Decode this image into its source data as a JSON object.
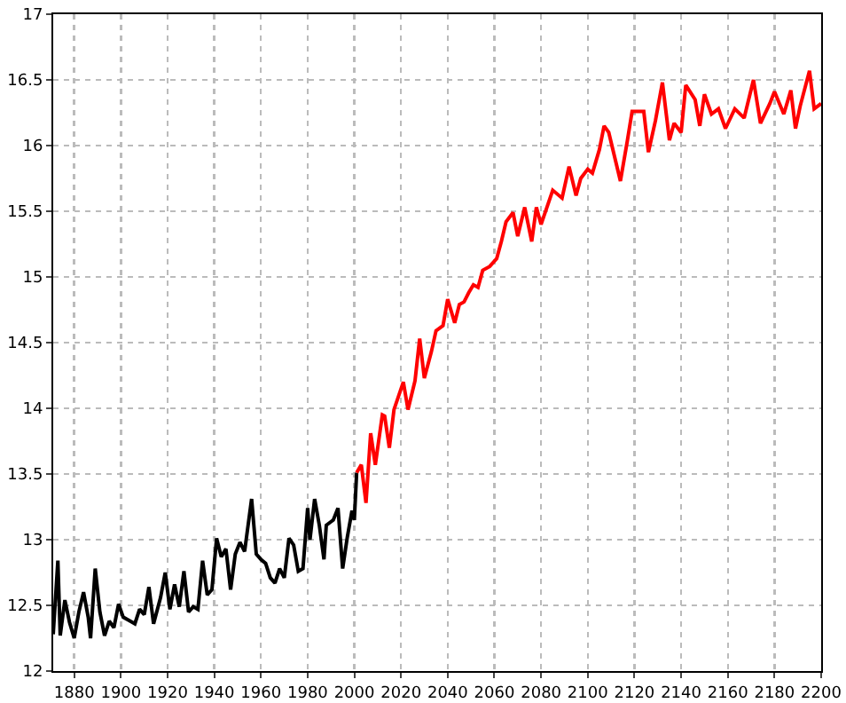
{
  "chart_data": {
    "type": "line",
    "xlim": [
      1871,
      2200
    ],
    "ylim": [
      12,
      17
    ],
    "xticks": [
      1880,
      1900,
      1920,
      1940,
      1960,
      1980,
      2000,
      2020,
      2040,
      2060,
      2080,
      2100,
      2120,
      2140,
      2160,
      2180,
      2200
    ],
    "yticks": [
      12,
      12.5,
      13,
      13.5,
      14,
      14.5,
      15,
      15.5,
      16,
      16.5,
      17
    ],
    "grid": true,
    "marker": "none",
    "line_style": "solid",
    "series": [
      {
        "color": "#000000",
        "x": [
          1871,
          1873,
          1874,
          1876,
          1878,
          1880,
          1882,
          1884,
          1886,
          1887,
          1889,
          1891,
          1893,
          1895,
          1897,
          1899,
          1901,
          1904,
          1906,
          1908,
          1910,
          1912,
          1914,
          1917,
          1919,
          1921,
          1923,
          1925,
          1927,
          1929,
          1931,
          1933,
          1935,
          1937,
          1939,
          1941,
          1943,
          1945,
          1947,
          1949,
          1951,
          1953,
          1956,
          1958,
          1960,
          1962,
          1964,
          1966,
          1968,
          1970,
          1972,
          1974,
          1976,
          1978,
          1980,
          1981,
          1983,
          1985,
          1987,
          1988,
          1991,
          1993,
          1995,
          1997,
          1999,
          2000,
          2001
        ],
        "values": [
          12.28,
          12.84,
          12.27,
          12.54,
          12.37,
          12.25,
          12.45,
          12.6,
          12.41,
          12.25,
          12.78,
          12.45,
          12.27,
          12.38,
          12.33,
          12.51,
          12.41,
          12.38,
          12.36,
          12.47,
          12.43,
          12.64,
          12.36,
          12.56,
          12.75,
          12.47,
          12.66,
          12.49,
          12.76,
          12.45,
          12.49,
          12.47,
          12.84,
          12.58,
          12.62,
          13.01,
          12.87,
          12.93,
          12.62,
          12.89,
          12.98,
          12.91,
          13.31,
          12.89,
          12.85,
          12.82,
          12.71,
          12.67,
          12.78,
          12.71,
          13.01,
          12.96,
          12.76,
          12.78,
          13.24,
          13.0,
          13.31,
          13.11,
          12.85,
          13.11,
          13.15,
          13.24,
          12.78,
          13.02,
          13.22,
          13.15,
          13.51
        ]
      },
      {
        "color": "#ff0000",
        "x": [
          2001,
          2003,
          2005,
          2007,
          2009,
          2012,
          2013,
          2015,
          2017,
          2021,
          2023,
          2026,
          2028,
          2030,
          2033,
          2035,
          2038,
          2040,
          2043,
          2045,
          2047,
          2049,
          2051,
          2053,
          2055,
          2058,
          2061,
          2063,
          2065,
          2068,
          2070,
          2073,
          2076,
          2078,
          2080,
          2085,
          2089,
          2092,
          2095,
          2097,
          2100,
          2102,
          2105,
          2107,
          2109,
          2114,
          2117,
          2119,
          2124,
          2126,
          2129,
          2132,
          2135,
          2137,
          2140,
          2142,
          2146,
          2148,
          2150,
          2153,
          2156,
          2159,
          2163,
          2167,
          2171,
          2174,
          2178,
          2180,
          2184,
          2187,
          2189,
          2191,
          2195,
          2197,
          2200
        ],
        "values": [
          13.51,
          13.57,
          13.28,
          13.81,
          13.57,
          13.95,
          13.94,
          13.7,
          13.99,
          14.2,
          13.99,
          14.21,
          14.53,
          14.23,
          14.43,
          14.59,
          14.63,
          14.83,
          14.65,
          14.79,
          14.81,
          14.88,
          14.94,
          14.92,
          15.05,
          15.08,
          15.14,
          15.27,
          15.42,
          15.49,
          15.31,
          15.53,
          15.27,
          15.53,
          15.4,
          15.66,
          15.6,
          15.84,
          15.62,
          15.75,
          15.82,
          15.79,
          15.97,
          16.15,
          16.1,
          15.73,
          16.04,
          16.26,
          16.26,
          15.95,
          16.19,
          16.48,
          16.04,
          16.17,
          16.1,
          16.46,
          16.35,
          16.15,
          16.39,
          16.24,
          16.28,
          16.13,
          16.28,
          16.21,
          16.5,
          16.17,
          16.32,
          16.41,
          16.24,
          16.42,
          16.13,
          16.3,
          16.57,
          16.28,
          16.32
        ]
      }
    ]
  }
}
